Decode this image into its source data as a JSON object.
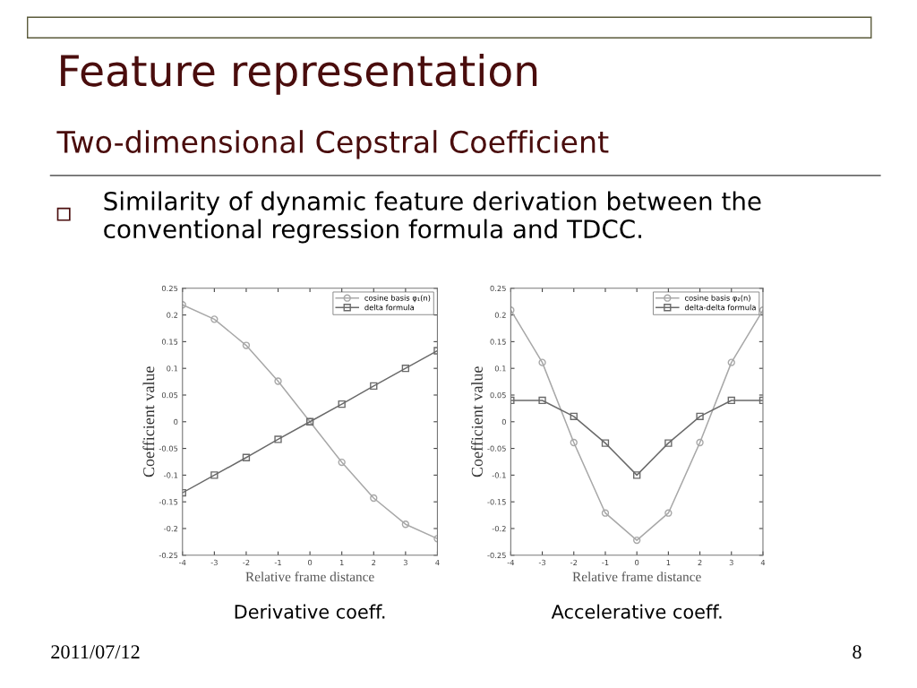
{
  "chart_data": [
    {
      "type": "line",
      "title": "Feature representation",
      "subtitle": "Two-dimensional Cepstral Coefficient",
      "xlabel": "Relative frame distance",
      "ylabel": "Coefficient value",
      "annotations": [
        "Similarity of dynamic feature derivation between the conventional regression formula and TDCC.",
        "Derivative coeff.",
        "2011/07/12",
        "8"
      ],
      "x": [
        -4,
        -3,
        -2,
        -1,
        0,
        1,
        2,
        3,
        4
      ],
      "series": [
        {
          "name": "cosine basis φ₁(n)",
          "color": "#a8a8a8",
          "marker": "circle",
          "values": [
            0.219,
            0.192,
            0.143,
            0.076,
            0,
            -0.076,
            -0.143,
            -0.192,
            -0.219
          ]
        },
        {
          "name": "delta formula",
          "color": "#6a6a6a",
          "marker": "square",
          "values": [
            -0.133,
            -0.1,
            -0.067,
            -0.033,
            0,
            0.033,
            0.067,
            0.1,
            0.133
          ]
        }
      ],
      "xlim": [
        -4,
        4
      ],
      "ylim": [
        -0.25,
        0.25
      ],
      "xticks": [
        -4,
        -3,
        -2,
        -1,
        0,
        1,
        2,
        3,
        4
      ],
      "yticks": [
        -0.25,
        -0.2,
        -0.15,
        -0.1,
        -0.05,
        0,
        0.05,
        0.1,
        0.15,
        0.2,
        0.25
      ],
      "legend": "top right"
    },
    {
      "type": "line",
      "xlabel": "Relative frame distance",
      "ylabel": "Coefficient value",
      "annotations": [
        "Accelerative coeff."
      ],
      "x": [
        -4,
        -3,
        -2,
        -1,
        0,
        1,
        2,
        3,
        4
      ],
      "series": [
        {
          "name": "cosine basis φ₂(n)",
          "color": "#a8a8a8",
          "marker": "circle",
          "values": [
            0.209,
            0.111,
            -0.039,
            -0.171,
            -0.222,
            -0.171,
            -0.039,
            0.111,
            0.209
          ]
        },
        {
          "name": "delta-delta formula",
          "color": "#6a6a6a",
          "marker": "square",
          "values": [
            0.04,
            0.04,
            0.01,
            -0.04,
            -0.1,
            -0.04,
            0.01,
            0.04,
            0.04
          ]
        }
      ],
      "xlim": [
        -4,
        4
      ],
      "ylim": [
        -0.25,
        0.25
      ],
      "xticks": [
        -4,
        -3,
        -2,
        -1,
        0,
        1,
        2,
        3,
        4
      ],
      "yticks": [
        -0.25,
        -0.2,
        -0.15,
        -0.1,
        -0.05,
        0,
        0.05,
        0.1,
        0.15,
        0.2,
        0.25
      ],
      "legend": "top right"
    }
  ]
}
